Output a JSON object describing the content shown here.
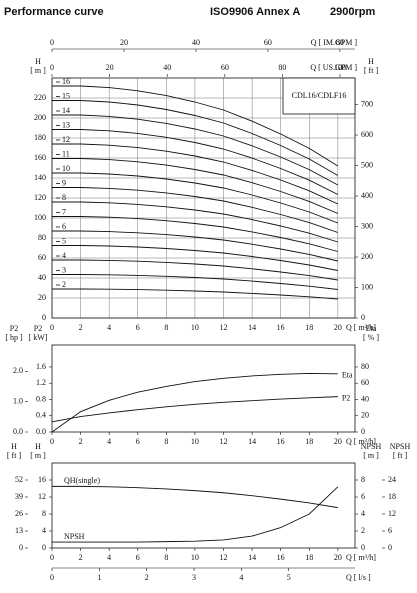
{
  "header": {
    "title": "Performance curve",
    "standard": "ISO9906 Annex A",
    "speed": "2900rpm"
  },
  "chart_data": [
    {
      "type": "line",
      "label": "CDL16/CDLF16",
      "grid": true,
      "series_label": "start",
      "x": [
        0,
        2,
        4,
        6,
        8,
        10,
        12,
        14,
        16,
        18,
        20
      ],
      "xlim": [
        0,
        21.2
      ],
      "xticks": [
        0,
        2,
        4,
        6,
        8,
        10,
        12,
        14,
        16,
        18,
        20
      ],
      "xlabel": "Q [ m³/h]",
      "x_top": [
        {
          "label": "Q [ IM.GPM ]",
          "xlim": [
            0,
            84.2
          ],
          "xticks": [
            0,
            20,
            40,
            60,
            80
          ]
        },
        {
          "label": "Q [ US.GPM ]",
          "xlim": [
            0,
            105.2
          ],
          "xticks": [
            0,
            20,
            40,
            60,
            80,
            100
          ]
        }
      ],
      "ylabel": [
        "H",
        "[ m ]"
      ],
      "ylim": [
        0,
        240
      ],
      "yticks": [
        0,
        20,
        40,
        60,
        80,
        100,
        120,
        140,
        160,
        180,
        200,
        220
      ],
      "y2label": [
        "H",
        "[ ft ]"
      ],
      "y2lim": [
        0,
        787
      ],
      "y2ticks": [
        0,
        100,
        200,
        300,
        400,
        500,
        600,
        700
      ],
      "series": [
        {
          "name": "2",
          "color": "#111111",
          "values": [
            29,
            29,
            28.8,
            28.4,
            27.8,
            27,
            26,
            24.6,
            23,
            21.2,
            19
          ]
        },
        {
          "name": "3",
          "color": "#111111",
          "values": [
            43.5,
            43.5,
            43.2,
            42.6,
            41.7,
            40.5,
            39,
            36.9,
            34.5,
            31.8,
            28.5
          ]
        },
        {
          "name": "4",
          "color": "#111111",
          "values": [
            58,
            58,
            57.6,
            56.8,
            55.6,
            54,
            52,
            49.2,
            46,
            42.4,
            38
          ]
        },
        {
          "name": "5",
          "color": "#111111",
          "values": [
            72.5,
            72.5,
            72,
            71,
            69.5,
            67.5,
            65,
            61.5,
            57.5,
            53,
            47.5
          ]
        },
        {
          "name": "6",
          "color": "#111111",
          "values": [
            87,
            87,
            86.4,
            85.2,
            83.4,
            81,
            78,
            73.8,
            69,
            63.6,
            57
          ]
        },
        {
          "name": "7",
          "color": "#111111",
          "values": [
            101.5,
            101.5,
            100.8,
            99.4,
            97.3,
            94.5,
            91,
            86.1,
            80.5,
            74.2,
            66.5
          ]
        },
        {
          "name": "8",
          "color": "#111111",
          "values": [
            116,
            116,
            115.2,
            113.6,
            111.2,
            108,
            104,
            98.4,
            92,
            84.8,
            76
          ]
        },
        {
          "name": "9",
          "color": "#111111",
          "values": [
            130.5,
            130.5,
            129.6,
            127.8,
            125.1,
            121.5,
            117,
            110.7,
            103.5,
            95.4,
            85.5
          ]
        },
        {
          "name": "10",
          "color": "#111111",
          "values": [
            145,
            145,
            144,
            142,
            139,
            135,
            130,
            123,
            115,
            106,
            95
          ]
        },
        {
          "name": "11",
          "color": "#111111",
          "values": [
            159.5,
            159.5,
            158.4,
            156.2,
            152.9,
            148.5,
            143,
            135.3,
            126.5,
            116.6,
            104.5
          ]
        },
        {
          "name": "12",
          "color": "#111111",
          "values": [
            174,
            174,
            172.8,
            170.4,
            166.8,
            162,
            156,
            147.6,
            138,
            127.2,
            114
          ]
        },
        {
          "name": "13",
          "color": "#111111",
          "values": [
            188.5,
            188.5,
            187.2,
            184.6,
            180.7,
            175.5,
            169,
            159.9,
            149.5,
            137.8,
            123.5
          ]
        },
        {
          "name": "14",
          "color": "#111111",
          "values": [
            203,
            203,
            201.6,
            198.8,
            194.6,
            189,
            182,
            172.2,
            161,
            148.4,
            133
          ]
        },
        {
          "name": "15",
          "color": "#111111",
          "values": [
            217.5,
            217.5,
            216,
            213,
            208.5,
            202.5,
            195,
            184.5,
            172.5,
            159,
            142.5
          ]
        },
        {
          "name": "16",
          "color": "#111111",
          "values": [
            232,
            232,
            230.4,
            227.2,
            222.4,
            216,
            208,
            196.8,
            184,
            169.6,
            152
          ]
        }
      ]
    },
    {
      "type": "line",
      "grid": false,
      "series_label": "end",
      "x": [
        0,
        2,
        4,
        6,
        8,
        10,
        12,
        14,
        16,
        18,
        20
      ],
      "xlim": [
        0,
        21.2
      ],
      "xticks": [
        0,
        2,
        4,
        6,
        8,
        10,
        12,
        14,
        16,
        18,
        20
      ],
      "xlabel": "Q [ m³/h]",
      "ylabel": [
        "P2",
        "[ kW]"
      ],
      "ylim": [
        0,
        2.14
      ],
      "yticks": [
        {
          "value": 0,
          "label": "0.0"
        },
        0.4,
        0.8,
        1.2,
        1.6
      ],
      "y_outer": {
        "label": [
          "P2",
          "[ hp ]"
        ],
        "lim": [
          0,
          2.87
        ],
        "ticks": [
          {
            "value": 0,
            "label": "0.0"
          },
          {
            "value": 1,
            "label": "1.0"
          },
          {
            "value": 2,
            "label": "2.0"
          }
        ]
      },
      "y2label": [
        "Eta",
        "[ % ]"
      ],
      "y2lim": [
        0,
        107
      ],
      "y2ticks": [
        0,
        20,
        40,
        60,
        80
      ],
      "series": [
        {
          "name": "Eta",
          "color": "#111111",
          "axis": "y2",
          "values": [
            0,
            25,
            39,
            49,
            56,
            62,
            66,
            69,
            71,
            72,
            71.5
          ]
        },
        {
          "name": "P2",
          "color": "#111111",
          "values": [
            0.25,
            0.38,
            0.47,
            0.55,
            0.62,
            0.68,
            0.73,
            0.77,
            0.81,
            0.84,
            0.87
          ]
        }
      ]
    },
    {
      "type": "line",
      "grid": false,
      "series_label": "above",
      "x": [
        0,
        2,
        4,
        6,
        8,
        10,
        12,
        14,
        16,
        18,
        20
      ],
      "xlim": [
        0,
        21.2
      ],
      "xticks": [
        0,
        2,
        4,
        6,
        8,
        10,
        12,
        14,
        16,
        18,
        20
      ],
      "xlabel": "Q [ m³/h]",
      "x_bottom": {
        "label": "Q [ l/s ]",
        "xlim": [
          0,
          6.4
        ],
        "xticks": [
          0,
          1,
          2,
          3,
          4,
          5
        ]
      },
      "ylabel": [
        "H",
        "[ m ]"
      ],
      "ylim": [
        0,
        20
      ],
      "yticks": [
        0,
        4,
        8,
        12,
        16
      ],
      "y_outer": {
        "label": [
          "H",
          "[ ft ]"
        ],
        "lim": [
          0,
          65
        ],
        "ticks": [
          0,
          13,
          26,
          39,
          52
        ]
      },
      "y2label": [
        "NPSH",
        "[ m ]"
      ],
      "y2lim": [
        0,
        10
      ],
      "y2ticks": [
        0,
        2,
        4,
        6,
        8
      ],
      "y2_outer": {
        "label": [
          "NPSH",
          "[ ft ]"
        ],
        "lim": [
          0,
          30
        ],
        "ticks": [
          0,
          6,
          12,
          18,
          24
        ]
      },
      "series": [
        {
          "name": "QH(single)",
          "color": "#111111",
          "values": [
            14.5,
            14.5,
            14.4,
            14.2,
            13.9,
            13.5,
            13,
            12.3,
            11.5,
            10.6,
            9.5
          ]
        },
        {
          "name": "NPSH",
          "color": "#111111",
          "axis": "y2",
          "values": [
            0.7,
            0.7,
            0.7,
            0.7,
            0.75,
            0.8,
            0.95,
            1.4,
            2.4,
            4,
            7.2
          ]
        }
      ]
    }
  ]
}
